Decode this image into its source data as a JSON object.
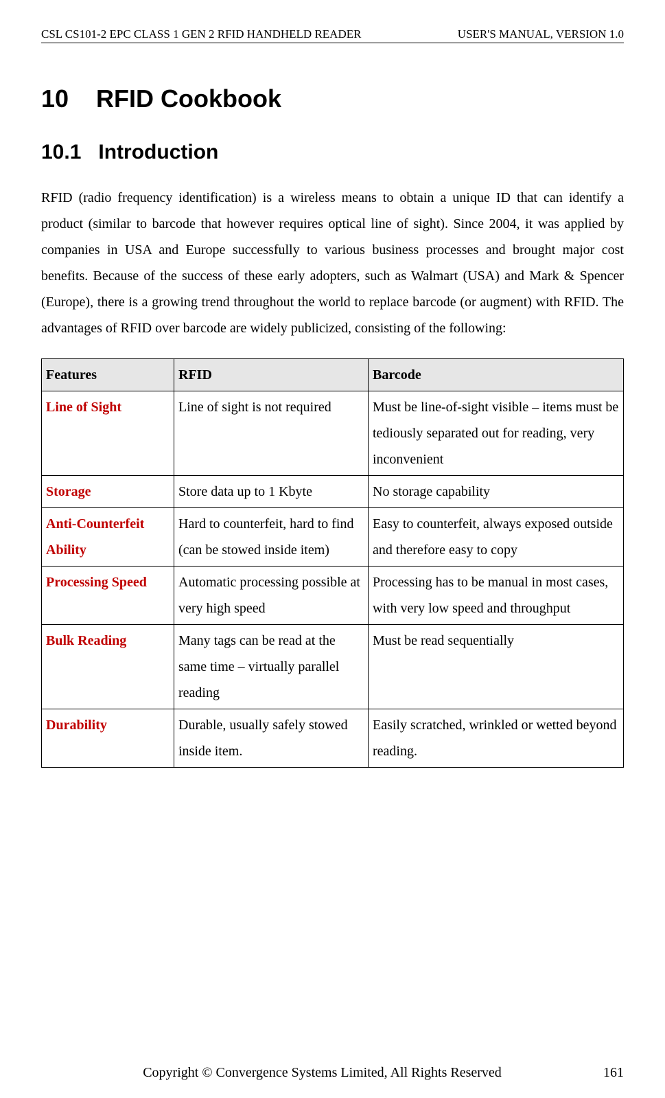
{
  "header": {
    "left": "CSL CS101-2 EPC CLASS 1 GEN 2 RFID HANDHELD READER",
    "right": "USER'S  MANUAL,  VERSION  1.0"
  },
  "chapter": {
    "number": "10",
    "title": "RFID Cookbook"
  },
  "section": {
    "number": "10.1",
    "title": "Introduction"
  },
  "paragraph": "RFID (radio frequency identification) is a wireless means to obtain a unique ID that can identify a product (similar to barcode that however requires optical line of sight).   Since 2004, it was applied by companies in USA and Europe successfully to various business processes and brought major cost benefits.   Because of the success of these early adopters, such as Walmart (USA) and Mark & Spencer (Europe), there is a growing trend throughout the world to replace barcode (or augment) with RFID.   The advantages of RFID over barcode are widely publicized, consisting of the following:",
  "table": {
    "headers": [
      "Features",
      "RFID",
      "Barcode"
    ],
    "header_bg": "#e6e6e6",
    "feature_color": "#c00000",
    "rows": [
      {
        "feature": "Line of Sight",
        "rfid": "Line of sight is not required",
        "barcode": "Must be line-of-sight visible – items must be tediously separated out for reading, very inconvenient",
        "rfid_justify": false,
        "barcode_justify": true
      },
      {
        "feature": "Storage",
        "rfid": "Store data up to 1 Kbyte",
        "barcode": "No storage capability",
        "rfid_justify": false,
        "barcode_justify": false
      },
      {
        "feature": "Anti-Counterfeit Ability",
        "rfid": "Hard to counterfeit, hard to find (can be stowed inside item)",
        "barcode": "Easy to counterfeit, always exposed outside and therefore easy to copy",
        "rfid_justify": true,
        "barcode_justify": true
      },
      {
        "feature": "Processing Speed",
        "rfid": "Automatic processing possible at very high speed",
        "barcode": "Processing has to be manual in most cases, with very low speed and throughput",
        "rfid_justify": true,
        "barcode_justify": true
      },
      {
        "feature": "Bulk Reading",
        "rfid": "Many tags can be read at the same time – virtually parallel reading",
        "barcode": "Must be read sequentially",
        "rfid_justify": true,
        "barcode_justify": false
      },
      {
        "feature": "Durability",
        "rfid": "Durable, usually safely stowed inside item.",
        "barcode": "Easily scratched, wrinkled or wetted beyond reading.",
        "rfid_justify": true,
        "barcode_justify": true
      }
    ]
  },
  "footer": {
    "text": "Copyright © Convergence Systems Limited, All Rights Reserved",
    "page": "161"
  }
}
